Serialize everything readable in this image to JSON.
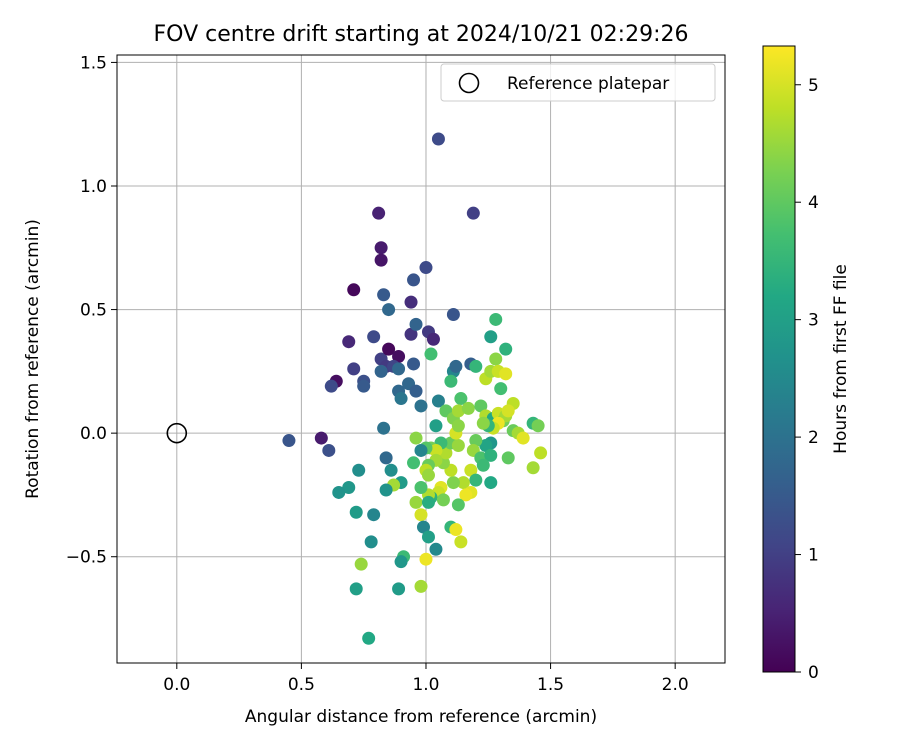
{
  "chart_data": {
    "type": "scatter",
    "title": "FOV centre drift starting at 2024/10/21 02:29:26",
    "xlabel": "Angular distance from reference (arcmin)",
    "ylabel": "Rotation from reference (arcmin)",
    "colorbar_label": "Hours from first FF file",
    "xlim": [
      -0.24,
      2.2
    ],
    "ylim": [
      -0.93,
      1.53
    ],
    "xticks": [
      0.0,
      0.5,
      1.0,
      1.5,
      2.0
    ],
    "xtick_labels": [
      "0.0",
      "0.5",
      "1.0",
      "1.5",
      "2.0"
    ],
    "yticks": [
      -0.5,
      0.0,
      0.5,
      1.0,
      1.5
    ],
    "ytick_labels": [
      "−0.5",
      "0.0",
      "0.5",
      "1.0",
      "1.5"
    ],
    "colorbar_range": [
      0,
      5.33
    ],
    "colorbar_ticks": [
      0,
      1,
      2,
      3,
      4,
      5
    ],
    "colorbar_tick_labels": [
      "0",
      "1",
      "2",
      "3",
      "4",
      "5"
    ],
    "colormap": "viridis",
    "grid": true,
    "legend": {
      "placement": "top-right",
      "entries": [
        "Reference platepar"
      ]
    },
    "reference_point": {
      "x": 0.0,
      "y": 0.0
    },
    "points": [
      {
        "x": 0.81,
        "y": 0.89,
        "t": 0.5
      },
      {
        "x": 0.82,
        "y": 0.75,
        "t": 0.4
      },
      {
        "x": 0.82,
        "y": 0.7,
        "t": 0.3
      },
      {
        "x": 0.71,
        "y": 0.58,
        "t": 0.1
      },
      {
        "x": 0.69,
        "y": 0.37,
        "t": 0.6
      },
      {
        "x": 0.64,
        "y": 0.21,
        "t": 0.2
      },
      {
        "x": 0.62,
        "y": 0.19,
        "t": 1.2
      },
      {
        "x": 0.61,
        "y": -0.07,
        "t": 1.3
      },
      {
        "x": 0.58,
        "y": -0.02,
        "t": 0.4
      },
      {
        "x": 0.45,
        "y": -0.03,
        "t": 1.4
      },
      {
        "x": 0.71,
        "y": 0.26,
        "t": 1.0
      },
      {
        "x": 0.75,
        "y": 0.21,
        "t": 1.3
      },
      {
        "x": 0.75,
        "y": 0.19,
        "t": 1.5
      },
      {
        "x": 0.79,
        "y": 0.39,
        "t": 1.2
      },
      {
        "x": 0.82,
        "y": 0.3,
        "t": 1.0
      },
      {
        "x": 0.83,
        "y": 0.56,
        "t": 1.5
      },
      {
        "x": 0.85,
        "y": 0.5,
        "t": 1.8
      },
      {
        "x": 0.85,
        "y": 0.34,
        "t": 0.1
      },
      {
        "x": 0.89,
        "y": 0.31,
        "t": 0.2
      },
      {
        "x": 0.84,
        "y": 0.27,
        "t": 0.9
      },
      {
        "x": 0.82,
        "y": 0.25,
        "t": 1.7
      },
      {
        "x": 0.87,
        "y": 0.27,
        "t": 1.1
      },
      {
        "x": 0.89,
        "y": 0.26,
        "t": 1.8
      },
      {
        "x": 0.95,
        "y": 0.62,
        "t": 1.4
      },
      {
        "x": 0.94,
        "y": 0.53,
        "t": 0.7
      },
      {
        "x": 0.94,
        "y": 0.4,
        "t": 0.8
      },
      {
        "x": 0.96,
        "y": 0.44,
        "t": 1.7
      },
      {
        "x": 1.0,
        "y": 0.67,
        "t": 1.2
      },
      {
        "x": 1.01,
        "y": 0.41,
        "t": 0.9
      },
      {
        "x": 1.03,
        "y": 0.38,
        "t": 0.6
      },
      {
        "x": 0.95,
        "y": 0.28,
        "t": 1.5
      },
      {
        "x": 0.89,
        "y": 0.17,
        "t": 1.8
      },
      {
        "x": 0.9,
        "y": 0.14,
        "t": 2.1
      },
      {
        "x": 0.93,
        "y": 0.2,
        "t": 1.8
      },
      {
        "x": 0.96,
        "y": 0.17,
        "t": 1.6
      },
      {
        "x": 0.98,
        "y": 0.11,
        "t": 2.0
      },
      {
        "x": 1.05,
        "y": 1.19,
        "t": 1.2
      },
      {
        "x": 1.19,
        "y": 0.89,
        "t": 1.0
      },
      {
        "x": 1.11,
        "y": 0.48,
        "t": 1.4
      },
      {
        "x": 1.02,
        "y": 0.32,
        "t": 3.7
      },
      {
        "x": 1.11,
        "y": 0.25,
        "t": 2.4
      },
      {
        "x": 1.12,
        "y": 0.27,
        "t": 1.8
      },
      {
        "x": 1.18,
        "y": 0.28,
        "t": 1.6
      },
      {
        "x": 1.2,
        "y": 0.27,
        "t": 3.5
      },
      {
        "x": 1.26,
        "y": 0.39,
        "t": 3.0
      },
      {
        "x": 1.28,
        "y": 0.46,
        "t": 3.6
      },
      {
        "x": 1.32,
        "y": 0.34,
        "t": 3.4
      },
      {
        "x": 1.28,
        "y": 0.3,
        "t": 4.4
      },
      {
        "x": 1.24,
        "y": 0.22,
        "t": 4.8
      },
      {
        "x": 1.26,
        "y": 0.25,
        "t": 4.6
      },
      {
        "x": 1.29,
        "y": 0.25,
        "t": 4.9
      },
      {
        "x": 1.3,
        "y": 0.18,
        "t": 3.7
      },
      {
        "x": 1.32,
        "y": 0.24,
        "t": 5.1
      },
      {
        "x": 1.35,
        "y": 0.12,
        "t": 4.8
      },
      {
        "x": 1.1,
        "y": 0.21,
        "t": 3.6
      },
      {
        "x": 1.05,
        "y": 0.13,
        "t": 2.3
      },
      {
        "x": 1.08,
        "y": 0.09,
        "t": 4.0
      },
      {
        "x": 1.11,
        "y": 0.06,
        "t": 4.3
      },
      {
        "x": 1.14,
        "y": 0.14,
        "t": 3.8
      },
      {
        "x": 1.13,
        "y": 0.09,
        "t": 4.6
      },
      {
        "x": 1.17,
        "y": 0.1,
        "t": 4.4
      },
      {
        "x": 1.22,
        "y": 0.11,
        "t": 4.0
      },
      {
        "x": 1.24,
        "y": 0.07,
        "t": 4.7
      },
      {
        "x": 1.27,
        "y": 0.06,
        "t": 3.2
      },
      {
        "x": 1.29,
        "y": 0.08,
        "t": 4.9
      },
      {
        "x": 1.31,
        "y": 0.05,
        "t": 4.2
      },
      {
        "x": 1.32,
        "y": 0.07,
        "t": 4.6
      },
      {
        "x": 1.33,
        "y": 0.09,
        "t": 5.0
      },
      {
        "x": 1.29,
        "y": 0.04,
        "t": 5.2
      },
      {
        "x": 1.27,
        "y": 0.02,
        "t": 4.9
      },
      {
        "x": 1.25,
        "y": 0.03,
        "t": 3.5
      },
      {
        "x": 1.23,
        "y": 0.04,
        "t": 4.4
      },
      {
        "x": 1.35,
        "y": 0.01,
        "t": 4.1
      },
      {
        "x": 1.37,
        "y": 0.0,
        "t": 4.6
      },
      {
        "x": 1.39,
        "y": -0.02,
        "t": 5.1
      },
      {
        "x": 1.43,
        "y": 0.04,
        "t": 3.5
      },
      {
        "x": 1.45,
        "y": 0.03,
        "t": 4.2
      },
      {
        "x": 1.46,
        "y": -0.08,
        "t": 4.8
      },
      {
        "x": 1.43,
        "y": -0.14,
        "t": 4.6
      },
      {
        "x": 1.33,
        "y": -0.1,
        "t": 4.0
      },
      {
        "x": 1.26,
        "y": -0.04,
        "t": 2.8
      },
      {
        "x": 1.24,
        "y": -0.05,
        "t": 3.1
      },
      {
        "x": 1.2,
        "y": -0.03,
        "t": 4.1
      },
      {
        "x": 1.19,
        "y": -0.07,
        "t": 4.5
      },
      {
        "x": 1.22,
        "y": -0.1,
        "t": 3.8
      },
      {
        "x": 1.26,
        "y": -0.09,
        "t": 3.4
      },
      {
        "x": 1.23,
        "y": -0.13,
        "t": 3.6
      },
      {
        "x": 1.18,
        "y": -0.15,
        "t": 4.9
      },
      {
        "x": 1.2,
        "y": -0.19,
        "t": 3.5
      },
      {
        "x": 1.26,
        "y": -0.2,
        "t": 3.2
      },
      {
        "x": 1.15,
        "y": -0.2,
        "t": 4.7
      },
      {
        "x": 1.18,
        "y": -0.24,
        "t": 5.1
      },
      {
        "x": 1.16,
        "y": -0.25,
        "t": 5.2
      },
      {
        "x": 1.13,
        "y": -0.29,
        "t": 3.9
      },
      {
        "x": 1.11,
        "y": -0.2,
        "t": 4.3
      },
      {
        "x": 1.1,
        "y": -0.15,
        "t": 4.8
      },
      {
        "x": 1.07,
        "y": -0.12,
        "t": 4.4
      },
      {
        "x": 1.08,
        "y": -0.08,
        "t": 4.7
      },
      {
        "x": 1.1,
        "y": -0.04,
        "t": 4.1
      },
      {
        "x": 1.13,
        "y": -0.05,
        "t": 4.5
      },
      {
        "x": 1.12,
        "y": 0.0,
        "t": 5.0
      },
      {
        "x": 1.13,
        "y": 0.03,
        "t": 4.4
      },
      {
        "x": 1.06,
        "y": -0.04,
        "t": 3.6
      },
      {
        "x": 1.04,
        "y": 0.03,
        "t": 3.0
      },
      {
        "x": 1.02,
        "y": -0.06,
        "t": 4.2
      },
      {
        "x": 1.04,
        "y": -0.07,
        "t": 4.9
      },
      {
        "x": 1.04,
        "y": -0.11,
        "t": 4.6
      },
      {
        "x": 1.0,
        "y": -0.06,
        "t": 3.9
      },
      {
        "x": 1.01,
        "y": -0.13,
        "t": 4.1
      },
      {
        "x": 0.98,
        "y": -0.07,
        "t": 2.4
      },
      {
        "x": 0.96,
        "y": -0.02,
        "t": 4.4
      },
      {
        "x": 0.95,
        "y": -0.12,
        "t": 3.7
      },
      {
        "x": 1.0,
        "y": -0.15,
        "t": 4.8
      },
      {
        "x": 1.01,
        "y": -0.17,
        "t": 4.5
      },
      {
        "x": 1.06,
        "y": -0.22,
        "t": 5.1
      },
      {
        "x": 1.05,
        "y": -0.24,
        "t": 4.9
      },
      {
        "x": 1.02,
        "y": -0.26,
        "t": 3.4
      },
      {
        "x": 1.01,
        "y": -0.25,
        "t": 4.7
      },
      {
        "x": 1.07,
        "y": -0.27,
        "t": 4.2
      },
      {
        "x": 0.98,
        "y": -0.22,
        "t": 3.8
      },
      {
        "x": 0.96,
        "y": -0.28,
        "t": 4.5
      },
      {
        "x": 0.98,
        "y": -0.33,
        "t": 5.0
      },
      {
        "x": 1.01,
        "y": -0.28,
        "t": 3.3
      },
      {
        "x": 0.99,
        "y": -0.38,
        "t": 2.4
      },
      {
        "x": 1.01,
        "y": -0.42,
        "t": 3.0
      },
      {
        "x": 1.04,
        "y": -0.47,
        "t": 2.5
      },
      {
        "x": 1.1,
        "y": -0.38,
        "t": 3.5
      },
      {
        "x": 1.12,
        "y": -0.39,
        "t": 5.2
      },
      {
        "x": 1.14,
        "y": -0.44,
        "t": 4.9
      },
      {
        "x": 0.9,
        "y": -0.2,
        "t": 2.9
      },
      {
        "x": 0.87,
        "y": -0.21,
        "t": 4.6
      },
      {
        "x": 0.84,
        "y": -0.23,
        "t": 2.7
      },
      {
        "x": 0.84,
        "y": -0.1,
        "t": 1.8
      },
      {
        "x": 0.83,
        "y": 0.02,
        "t": 2.0
      },
      {
        "x": 0.86,
        "y": -0.15,
        "t": 2.6
      },
      {
        "x": 0.73,
        "y": -0.15,
        "t": 2.6
      },
      {
        "x": 0.69,
        "y": -0.22,
        "t": 2.8
      },
      {
        "x": 0.65,
        "y": -0.24,
        "t": 2.7
      },
      {
        "x": 0.72,
        "y": -0.32,
        "t": 2.9
      },
      {
        "x": 0.79,
        "y": -0.33,
        "t": 2.4
      },
      {
        "x": 0.78,
        "y": -0.44,
        "t": 2.6
      },
      {
        "x": 0.74,
        "y": -0.53,
        "t": 4.5
      },
      {
        "x": 0.72,
        "y": -0.63,
        "t": 3.0
      },
      {
        "x": 0.77,
        "y": -0.83,
        "t": 3.2
      },
      {
        "x": 0.91,
        "y": -0.5,
        "t": 3.6
      },
      {
        "x": 0.9,
        "y": -0.52,
        "t": 2.8
      },
      {
        "x": 0.89,
        "y": -0.63,
        "t": 2.9
      },
      {
        "x": 0.98,
        "y": -0.62,
        "t": 4.6
      },
      {
        "x": 1.0,
        "y": -0.51,
        "t": 5.2
      }
    ]
  }
}
